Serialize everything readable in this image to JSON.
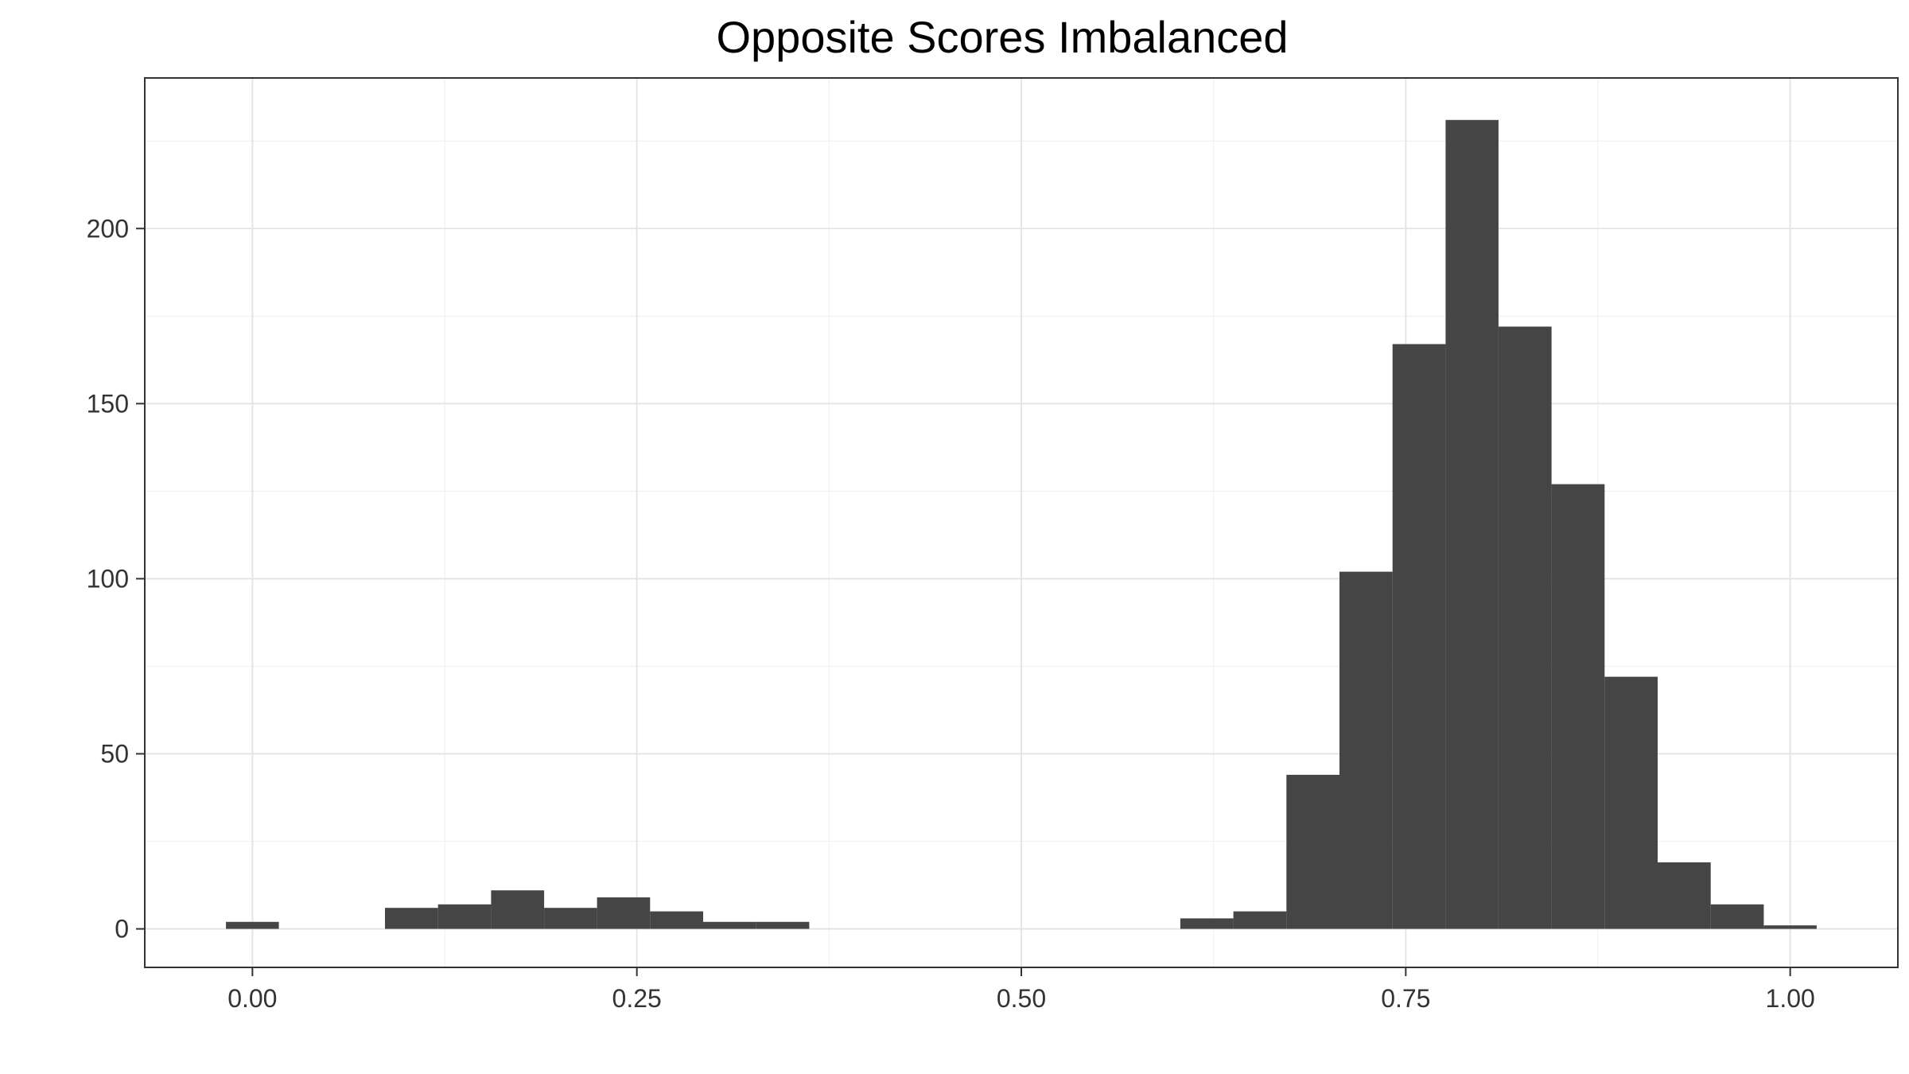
{
  "chart_data": {
    "type": "bar",
    "subtype": "histogram",
    "title": "Opposite Scores Imbalanced",
    "xlabel": "",
    "ylabel": "",
    "bar_color": "#454545",
    "xlim": [
      -0.07,
      1.07
    ],
    "ylim": [
      -11,
      243
    ],
    "grid": true,
    "x_ticks": [
      0.0,
      0.25,
      0.5,
      0.75,
      1.0
    ],
    "x_tick_labels": [
      "0.00",
      "0.25",
      "0.50",
      "0.75",
      "1.00"
    ],
    "y_ticks": [
      0,
      50,
      100,
      150,
      200
    ],
    "y_tick_labels": [
      "0",
      "50",
      "100",
      "150",
      "200"
    ],
    "bin_width": 0.0345,
    "bins": [
      {
        "x0": -0.0172,
        "x1": 0.0172,
        "count": 2
      },
      {
        "x0": 0.0172,
        "x1": 0.0517,
        "count": 0
      },
      {
        "x0": 0.0517,
        "x1": 0.0862,
        "count": 0
      },
      {
        "x0": 0.0862,
        "x1": 0.1207,
        "count": 6
      },
      {
        "x0": 0.1207,
        "x1": 0.1552,
        "count": 7
      },
      {
        "x0": 0.1552,
        "x1": 0.1897,
        "count": 11
      },
      {
        "x0": 0.1897,
        "x1": 0.2241,
        "count": 6
      },
      {
        "x0": 0.2241,
        "x1": 0.2586,
        "count": 9
      },
      {
        "x0": 0.2586,
        "x1": 0.2931,
        "count": 5
      },
      {
        "x0": 0.2931,
        "x1": 0.3276,
        "count": 2
      },
      {
        "x0": 0.3276,
        "x1": 0.3621,
        "count": 2
      },
      {
        "x0": 0.6034,
        "x1": 0.6379,
        "count": 3
      },
      {
        "x0": 0.6379,
        "x1": 0.6724,
        "count": 5
      },
      {
        "x0": 0.6724,
        "x1": 0.7069,
        "count": 44
      },
      {
        "x0": 0.7069,
        "x1": 0.7414,
        "count": 102
      },
      {
        "x0": 0.7414,
        "x1": 0.7759,
        "count": 167
      },
      {
        "x0": 0.7759,
        "x1": 0.8103,
        "count": 231
      },
      {
        "x0": 0.8103,
        "x1": 0.8448,
        "count": 172
      },
      {
        "x0": 0.8448,
        "x1": 0.8793,
        "count": 127
      },
      {
        "x0": 0.8793,
        "x1": 0.9138,
        "count": 72
      },
      {
        "x0": 0.9138,
        "x1": 0.9483,
        "count": 19
      },
      {
        "x0": 0.9483,
        "x1": 0.9828,
        "count": 7
      },
      {
        "x0": 0.9828,
        "x1": 1.0172,
        "count": 1
      }
    ]
  }
}
